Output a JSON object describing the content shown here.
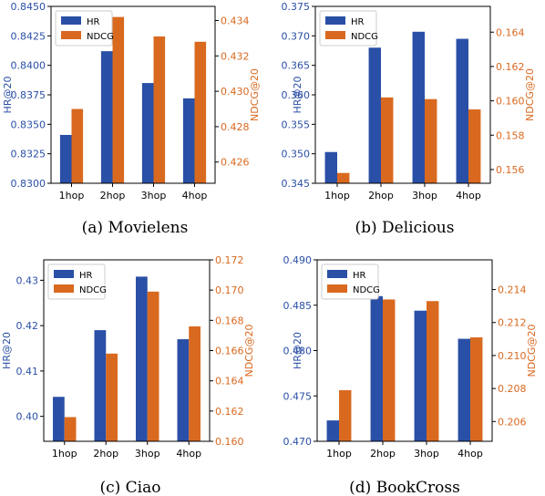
{
  "colors": {
    "hr": "#2a4fa6",
    "ndcg": "#d9691f",
    "axis": "#000000",
    "caption": "#000000"
  },
  "chart_data": [
    {
      "type": "bar",
      "caption": "(a)  Movielens",
      "categories": [
        "1hop",
        "2hop",
        "3hop",
        "4hop"
      ],
      "legend": [
        "HR",
        "NDCG"
      ],
      "legend_position": "top-left",
      "ylabel_left": "HR@20",
      "ylabel_right": "NDCG@20",
      "ylim_left": [
        0.83,
        0.845
      ],
      "yticks_left": [
        "0.8300",
        "0.8325",
        "0.8350",
        "0.8375",
        "0.8400",
        "0.8425",
        "0.8450"
      ],
      "ylim_right": [
        0.4248,
        0.4348
      ],
      "yticks_right": [
        "0.426",
        "0.428",
        "0.430",
        "0.432",
        "0.434"
      ],
      "series": [
        {
          "name": "HR",
          "axis": "left",
          "values": [
            0.8341,
            0.8412,
            0.8385,
            0.8372
          ]
        },
        {
          "name": "NDCG",
          "axis": "right",
          "values": [
            0.429,
            0.4342,
            0.4331,
            0.4328
          ]
        }
      ]
    },
    {
      "type": "bar",
      "caption": "(b)  Delicious",
      "categories": [
        "1hop",
        "2hop",
        "3hop",
        "4hop"
      ],
      "legend": [
        "HR",
        "NDCG"
      ],
      "legend_position": "top-left",
      "ylabel_left": "HR@20",
      "ylabel_right": "NDCG@20",
      "ylim_left": [
        0.345,
        0.375
      ],
      "yticks_left": [
        "0.345",
        "0.350",
        "0.355",
        "0.360",
        "0.365",
        "0.370",
        "0.375"
      ],
      "ylim_right": [
        0.1552,
        0.1655
      ],
      "yticks_right": [
        "0.156",
        "0.158",
        "0.160",
        "0.162",
        "0.164"
      ],
      "series": [
        {
          "name": "HR",
          "axis": "left",
          "values": [
            0.3503,
            0.368,
            0.3707,
            0.3695
          ]
        },
        {
          "name": "NDCG",
          "axis": "right",
          "values": [
            0.1558,
            0.1602,
            0.1601,
            0.1595
          ]
        }
      ]
    },
    {
      "type": "bar",
      "caption": "(c)  Ciao",
      "categories": [
        "1hop",
        "2hop",
        "3hop",
        "4hop"
      ],
      "legend": [
        "HR",
        "NDCG"
      ],
      "legend_position": "top-left",
      "ylabel_left": "HR@20",
      "ylabel_right": "NDCG@20",
      "ylim_left": [
        0.3945,
        0.4345
      ],
      "yticks_left": [
        "0.40",
        "0.41",
        "0.42",
        "0.43"
      ],
      "ylim_right": [
        0.16,
        0.172
      ],
      "yticks_right": [
        "0.160",
        "0.162",
        "0.164",
        "0.166",
        "0.168",
        "0.170",
        "0.172"
      ],
      "series": [
        {
          "name": "HR",
          "axis": "left",
          "values": [
            0.4043,
            0.419,
            0.4308,
            0.417
          ]
        },
        {
          "name": "NDCG",
          "axis": "right",
          "values": [
            0.1616,
            0.1658,
            0.1699,
            0.1676
          ]
        }
      ]
    },
    {
      "type": "bar",
      "caption": "(d)  BookCross",
      "categories": [
        "1hop",
        "2hop",
        "3hop",
        "4hop"
      ],
      "legend": [
        "HR",
        "NDCG"
      ],
      "legend_position": "top-left",
      "ylabel_left": "HR@20",
      "ylabel_right": "NDCG@20",
      "ylim_left": [
        0.47,
        0.49
      ],
      "yticks_left": [
        "0.470",
        "0.475",
        "0.480",
        "0.485",
        "0.490"
      ],
      "ylim_right": [
        0.2048,
        0.2158
      ],
      "yticks_right": [
        "0.206",
        "0.208",
        "0.210",
        "0.212",
        "0.214"
      ],
      "series": [
        {
          "name": "HR",
          "axis": "left",
          "values": [
            0.4723,
            0.486,
            0.4844,
            0.4813
          ]
        },
        {
          "name": "NDCG",
          "axis": "right",
          "values": [
            0.2079,
            0.2134,
            0.2133,
            0.2111
          ]
        }
      ]
    }
  ]
}
